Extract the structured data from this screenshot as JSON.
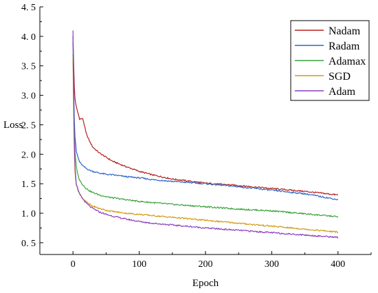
{
  "chart_data": {
    "type": "line",
    "title": "",
    "xlabel": "Epoch",
    "ylabel": "Loss",
    "xlim": [
      -50,
      450
    ],
    "ylim": [
      0.3,
      4.5
    ],
    "xticks": [
      0,
      100,
      200,
      300,
      400
    ],
    "xtick_labels": [
      "0",
      "100",
      "200",
      "300",
      "400"
    ],
    "yticks": [
      0.5,
      1.0,
      1.5,
      2.0,
      2.5,
      3.0,
      3.5,
      4.0,
      4.5
    ],
    "ytick_labels": [
      "0. 5",
      "1. 0",
      "1. 5",
      "2. 0",
      "2. 5",
      "3. 0",
      "3. 5",
      "4. 0",
      "4. 5"
    ],
    "grid": false,
    "legend_position": "top-right",
    "x": [
      0,
      1,
      2,
      3,
      5,
      8,
      10,
      15,
      20,
      25,
      30,
      40,
      50,
      60,
      80,
      100,
      120,
      150,
      200,
      250,
      300,
      350,
      400
    ],
    "series": [
      {
        "name": "Nadam",
        "color": "#b5201c",
        "values": [
          4.0,
          3.55,
          3.15,
          2.95,
          2.8,
          2.68,
          2.6,
          2.6,
          2.35,
          2.22,
          2.12,
          2.02,
          1.95,
          1.88,
          1.79,
          1.71,
          1.65,
          1.58,
          1.51,
          1.47,
          1.42,
          1.37,
          1.31
        ]
      },
      {
        "name": "Radam",
        "color": "#2a66c6",
        "values": [
          3.9,
          3.2,
          2.6,
          2.3,
          2.05,
          1.93,
          1.87,
          1.8,
          1.76,
          1.73,
          1.71,
          1.68,
          1.66,
          1.65,
          1.62,
          1.6,
          1.57,
          1.54,
          1.5,
          1.45,
          1.39,
          1.33,
          1.23
        ]
      },
      {
        "name": "Adamax",
        "color": "#3aa23a",
        "values": [
          3.7,
          2.95,
          2.4,
          2.05,
          1.78,
          1.63,
          1.56,
          1.48,
          1.42,
          1.38,
          1.35,
          1.31,
          1.28,
          1.26,
          1.23,
          1.2,
          1.18,
          1.15,
          1.11,
          1.07,
          1.04,
          0.99,
          0.94
        ]
      },
      {
        "name": "SGD",
        "color": "#d19a16",
        "values": [
          3.6,
          2.7,
          2.05,
          1.7,
          1.48,
          1.38,
          1.33,
          1.25,
          1.19,
          1.15,
          1.12,
          1.08,
          1.05,
          1.03,
          1.0,
          0.98,
          0.96,
          0.93,
          0.88,
          0.83,
          0.78,
          0.73,
          0.68
        ]
      },
      {
        "name": "Adam",
        "color": "#8a3fbf",
        "values": [
          4.1,
          3.0,
          2.2,
          1.8,
          1.5,
          1.38,
          1.32,
          1.24,
          1.17,
          1.12,
          1.08,
          1.02,
          0.98,
          0.95,
          0.9,
          0.86,
          0.83,
          0.8,
          0.75,
          0.71,
          0.67,
          0.63,
          0.59
        ]
      }
    ]
  }
}
